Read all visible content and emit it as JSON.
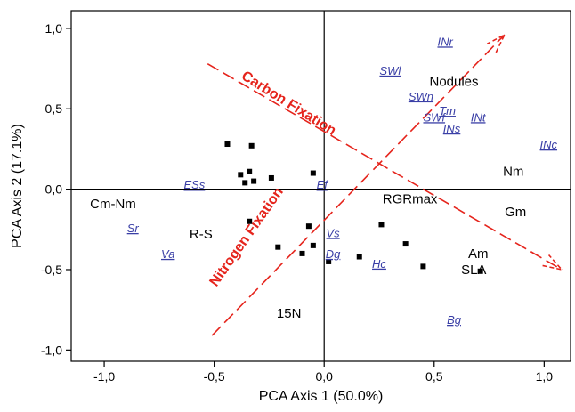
{
  "chart_data": {
    "type": "scatter",
    "xlabel": "PCA Axis 1 (50.0%)",
    "ylabel": "PCA Axis 2 (17.1%)",
    "xlim": [
      -1.15,
      1.12
    ],
    "ylim": [
      -1.07,
      1.11
    ],
    "x_ticks": [
      -1.0,
      -0.5,
      0.0,
      0.5,
      1.0
    ],
    "x_tick_labels": [
      "-1,0",
      "-0,5",
      "0,0",
      "0,5",
      "1,0"
    ],
    "y_ticks": [
      -1.0,
      -0.5,
      0.0,
      0.5,
      1.0
    ],
    "y_tick_labels": [
      "-1,0",
      "-0,5",
      "0,0",
      "0,5",
      "1,0"
    ],
    "grid": false,
    "reference_lines": {
      "x": 0,
      "y": 0
    },
    "points": [
      {
        "x": -0.44,
        "y": 0.28
      },
      {
        "x": -0.33,
        "y": 0.27
      },
      {
        "x": -0.05,
        "y": 0.1
      },
      {
        "x": -0.38,
        "y": 0.09
      },
      {
        "x": -0.34,
        "y": 0.11
      },
      {
        "x": -0.24,
        "y": 0.07
      },
      {
        "x": -0.36,
        "y": 0.04
      },
      {
        "x": -0.32,
        "y": 0.05
      },
      {
        "x": -0.34,
        "y": -0.2
      },
      {
        "x": -0.07,
        "y": -0.23
      },
      {
        "x": 0.26,
        "y": -0.22
      },
      {
        "x": -0.05,
        "y": -0.35
      },
      {
        "x": -0.1,
        "y": -0.4
      },
      {
        "x": -0.21,
        "y": -0.36
      },
      {
        "x": 0.02,
        "y": -0.45
      },
      {
        "x": 0.16,
        "y": -0.42
      },
      {
        "x": 0.37,
        "y": -0.34
      },
      {
        "x": 0.45,
        "y": -0.48
      },
      {
        "x": 0.71,
        "y": -0.51
      }
    ],
    "variable_labels": [
      {
        "text": "Nodules",
        "x": 0.59,
        "y": 0.67
      },
      {
        "text": "Nm",
        "x": 0.86,
        "y": 0.11
      },
      {
        "text": "RGRmax",
        "x": 0.39,
        "y": -0.06
      },
      {
        "text": "Gm",
        "x": 0.87,
        "y": -0.14
      },
      {
        "text": "Am",
        "x": 0.7,
        "y": -0.4
      },
      {
        "text": "SLA",
        "x": 0.68,
        "y": -0.5
      },
      {
        "text": "Cm-Nm",
        "x": -0.96,
        "y": -0.09
      },
      {
        "text": "R-S",
        "x": -0.56,
        "y": -0.28
      },
      {
        "text": "15N",
        "x": -0.16,
        "y": -0.77
      }
    ],
    "species_labels": [
      {
        "text": "INr",
        "x": 0.55,
        "y": 0.92
      },
      {
        "text": "SWl",
        "x": 0.3,
        "y": 0.74
      },
      {
        "text": "SWn",
        "x": 0.44,
        "y": 0.58
      },
      {
        "text": "Tm",
        "x": 0.56,
        "y": 0.49
      },
      {
        "text": "SWf",
        "x": 0.5,
        "y": 0.45
      },
      {
        "text": "INt",
        "x": 0.7,
        "y": 0.45
      },
      {
        "text": "INs",
        "x": 0.58,
        "y": 0.38
      },
      {
        "text": "INc",
        "x": 1.02,
        "y": 0.28
      },
      {
        "text": "ESs",
        "x": -0.59,
        "y": 0.03
      },
      {
        "text": "Ef",
        "x": -0.01,
        "y": 0.03
      },
      {
        "text": "Sr",
        "x": -0.87,
        "y": -0.24
      },
      {
        "text": "Va",
        "x": -0.71,
        "y": -0.4
      },
      {
        "text": "Vs",
        "x": 0.04,
        "y": -0.27
      },
      {
        "text": "Dg",
        "x": 0.04,
        "y": -0.4
      },
      {
        "text": "Hc",
        "x": 0.25,
        "y": -0.46
      },
      {
        "text": "Bg",
        "x": 0.59,
        "y": -0.81
      }
    ],
    "arrows": [
      {
        "name": "Carbon Fixation",
        "from": [
          -0.53,
          0.78
        ],
        "to": [
          1.08,
          -0.5
        ],
        "label_at": [
          -0.38,
          0.69
        ],
        "label_angle": 32
      },
      {
        "name": "Nitrogen Fixation",
        "from": [
          -0.51,
          -0.91
        ],
        "to": [
          0.82,
          0.96
        ],
        "label_at": [
          -0.49,
          -0.61
        ],
        "label_angle": -55
      }
    ],
    "colors": {
      "points": "#000000",
      "species": "#3a3fa6",
      "arrows": "#e5241c",
      "axes": "#000000"
    }
  }
}
